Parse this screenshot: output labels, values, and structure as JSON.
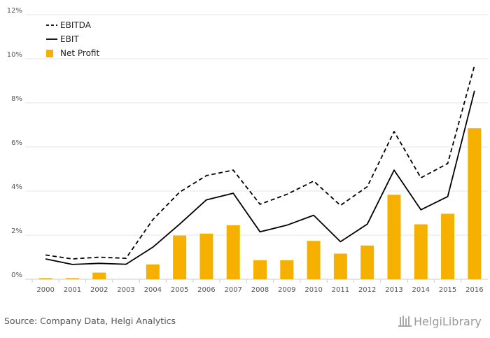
{
  "colors": {
    "ebitda": "#000000",
    "ebit": "#000000",
    "net_profit": "#f5b000",
    "grid": "#e6e6e6",
    "axis": "#cccccc"
  },
  "chart_data": {
    "type": "bar",
    "categories": [
      "2000",
      "2001",
      "2002",
      "2003",
      "2004",
      "2005",
      "2006",
      "2007",
      "2008",
      "2009",
      "2010",
      "2011",
      "2012",
      "2013",
      "2014",
      "2015",
      "2016"
    ],
    "ylim": [
      0,
      12
    ],
    "y_ticks": [
      0,
      2,
      4,
      6,
      8,
      10,
      12
    ],
    "y_tick_labels": [
      "0%",
      "2%",
      "4%",
      "6%",
      "8%",
      "10%",
      "12%"
    ],
    "grid": true,
    "legend_position": "top-left",
    "series": [
      {
        "name": "EBITDA",
        "type": "line",
        "style": "dashed",
        "values": [
          1.1,
          0.92,
          1.0,
          0.95,
          2.7,
          3.95,
          4.7,
          4.95,
          3.4,
          3.85,
          4.45,
          3.35,
          4.2,
          6.7,
          4.6,
          5.25,
          9.7
        ]
      },
      {
        "name": "EBIT",
        "type": "line",
        "style": "solid",
        "values": [
          0.92,
          0.67,
          0.72,
          0.68,
          1.45,
          2.5,
          3.6,
          3.9,
          2.15,
          2.45,
          2.9,
          1.7,
          2.5,
          4.95,
          3.15,
          3.75,
          8.55
        ]
      },
      {
        "name": "Net Profit",
        "type": "bar",
        "values": [
          0.05,
          0.05,
          0.3,
          0.0,
          0.67,
          1.98,
          2.07,
          2.45,
          0.86,
          0.86,
          1.74,
          1.16,
          1.53,
          3.83,
          2.49,
          2.97,
          6.85
        ]
      }
    ]
  },
  "footer": {
    "source": "Source: Company Data, Helgi Analytics",
    "brand": "HelgiLibrary"
  }
}
